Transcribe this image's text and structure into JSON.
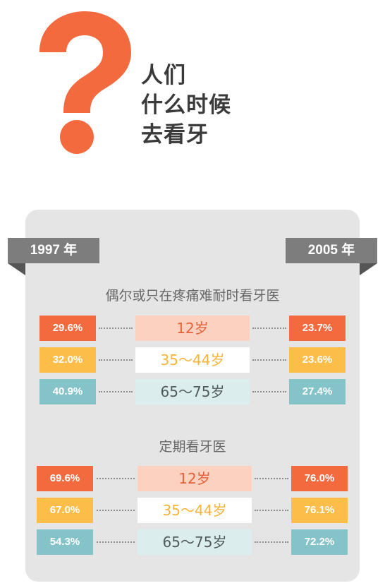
{
  "header": {
    "title_lines": [
      "人们",
      "什么时候",
      "去看牙"
    ],
    "icon": "question-mark-icon"
  },
  "years": {
    "left": "1997 年",
    "right": "2005 年"
  },
  "colors": {
    "orange": "#f26a3d",
    "yellow": "#fcbd49",
    "teal": "#84c3c8",
    "panel": "#e5e5e6",
    "tag": "#7d7d7d"
  },
  "sections": [
    {
      "title": "偶尔或只在疼痛难耐时看牙医",
      "rows": [
        {
          "age": "12岁",
          "y1997": "29.6%",
          "y2005": "23.7%"
        },
        {
          "age": "35～44岁",
          "y1997": "32.0%",
          "y2005": "23.6%"
        },
        {
          "age": "65～75岁",
          "y1997": "40.9%",
          "y2005": "27.4%"
        }
      ]
    },
    {
      "title": "定期看牙医",
      "rows": [
        {
          "age": "12岁",
          "y1997": "69.6%",
          "y2005": "76.0%"
        },
        {
          "age": "35～44岁",
          "y1997": "67.0%",
          "y2005": "76.1%"
        },
        {
          "age": "65～75岁",
          "y1997": "54.3%",
          "y2005": "72.2%"
        }
      ]
    }
  ]
}
